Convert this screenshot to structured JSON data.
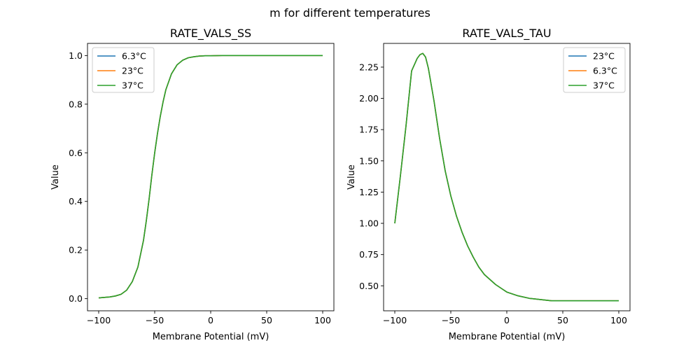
{
  "figure": {
    "suptitle": "m for different temperatures"
  },
  "chart_data": [
    {
      "type": "line",
      "title": "RATE_VALS_SS",
      "xlabel": "Membrane Potential (mV)",
      "ylabel": "Value",
      "xlim": [
        -110,
        110
      ],
      "ylim": [
        -0.05,
        1.05
      ],
      "xticks": [
        -100,
        -50,
        0,
        50,
        100
      ],
      "xtick_labels": [
        "−100",
        "−50",
        "0",
        "50",
        "100"
      ],
      "yticks": [
        0.0,
        0.2,
        0.4,
        0.6,
        0.8,
        1.0
      ],
      "ytick_labels": [
        "0.0",
        "0.2",
        "0.4",
        "0.6",
        "0.8",
        "1.0"
      ],
      "legend_position": "top-left",
      "x": [
        -100,
        -90,
        -85,
        -80,
        -75,
        -70,
        -65,
        -60,
        -57.5,
        -55,
        -52.5,
        -50,
        -47.5,
        -45,
        -42.5,
        -40,
        -35,
        -30,
        -25,
        -20,
        -15,
        -10,
        -5,
        0,
        10,
        20,
        40,
        60,
        80,
        100
      ],
      "series": [
        {
          "name": "6.3°C",
          "color": "#1f77b4",
          "values": [
            0.003,
            0.007,
            0.011,
            0.018,
            0.035,
            0.07,
            0.13,
            0.24,
            0.32,
            0.41,
            0.51,
            0.6,
            0.68,
            0.75,
            0.81,
            0.86,
            0.925,
            0.962,
            0.981,
            0.991,
            0.995,
            0.998,
            0.999,
            0.999,
            1.0,
            1.0,
            1.0,
            1.0,
            1.0,
            1.0
          ]
        },
        {
          "name": "23°C",
          "color": "#ff7f0e",
          "values": [
            0.003,
            0.007,
            0.011,
            0.018,
            0.035,
            0.07,
            0.13,
            0.24,
            0.32,
            0.41,
            0.51,
            0.6,
            0.68,
            0.75,
            0.81,
            0.86,
            0.925,
            0.962,
            0.981,
            0.991,
            0.995,
            0.998,
            0.999,
            0.999,
            1.0,
            1.0,
            1.0,
            1.0,
            1.0,
            1.0
          ]
        },
        {
          "name": "37°C",
          "color": "#2ca02c",
          "values": [
            0.003,
            0.007,
            0.011,
            0.018,
            0.035,
            0.07,
            0.13,
            0.24,
            0.32,
            0.41,
            0.51,
            0.6,
            0.68,
            0.75,
            0.81,
            0.86,
            0.925,
            0.962,
            0.981,
            0.991,
            0.995,
            0.998,
            0.999,
            0.999,
            1.0,
            1.0,
            1.0,
            1.0,
            1.0,
            1.0
          ]
        }
      ]
    },
    {
      "type": "line",
      "title": "RATE_VALS_TAU",
      "xlabel": "Membrane Potential (mV)",
      "ylabel": "Value",
      "xlim": [
        -110,
        110
      ],
      "ylim": [
        0.3,
        2.44
      ],
      "xticks": [
        -100,
        -50,
        0,
        50,
        100
      ],
      "xtick_labels": [
        "−100",
        "−50",
        "0",
        "50",
        "100"
      ],
      "yticks": [
        0.5,
        0.75,
        1.0,
        1.25,
        1.5,
        1.75,
        2.0,
        2.25
      ],
      "ytick_labels": [
        "0.50",
        "0.75",
        "1.00",
        "1.25",
        "1.50",
        "1.75",
        "2.00",
        "2.25"
      ],
      "legend_position": "top-right",
      "x": [
        -100,
        -95,
        -90,
        -85,
        -80,
        -77.5,
        -75,
        -72.5,
        -70,
        -65,
        -60,
        -55,
        -50,
        -45,
        -40,
        -35,
        -30,
        -25,
        -20,
        -15,
        -10,
        -5,
        0,
        10,
        20,
        30,
        40,
        60,
        80,
        100
      ],
      "series": [
        {
          "name": "23°C",
          "color": "#1f77b4",
          "values": [
            1.0,
            1.38,
            1.78,
            2.22,
            2.32,
            2.35,
            2.36,
            2.33,
            2.24,
            1.98,
            1.68,
            1.42,
            1.22,
            1.06,
            0.93,
            0.82,
            0.73,
            0.65,
            0.59,
            0.55,
            0.51,
            0.48,
            0.45,
            0.42,
            0.4,
            0.39,
            0.38,
            0.38,
            0.38,
            0.38
          ]
        },
        {
          "name": "6.3°C",
          "color": "#ff7f0e",
          "values": [
            1.0,
            1.38,
            1.78,
            2.22,
            2.32,
            2.35,
            2.36,
            2.33,
            2.24,
            1.98,
            1.68,
            1.42,
            1.22,
            1.06,
            0.93,
            0.82,
            0.73,
            0.65,
            0.59,
            0.55,
            0.51,
            0.48,
            0.45,
            0.42,
            0.4,
            0.39,
            0.38,
            0.38,
            0.38,
            0.38
          ]
        },
        {
          "name": "37°C",
          "color": "#2ca02c",
          "values": [
            1.0,
            1.38,
            1.78,
            2.22,
            2.32,
            2.35,
            2.36,
            2.33,
            2.24,
            1.98,
            1.68,
            1.42,
            1.22,
            1.06,
            0.93,
            0.82,
            0.73,
            0.65,
            0.59,
            0.55,
            0.51,
            0.48,
            0.45,
            0.42,
            0.4,
            0.39,
            0.38,
            0.38,
            0.38,
            0.38
          ]
        }
      ]
    }
  ]
}
